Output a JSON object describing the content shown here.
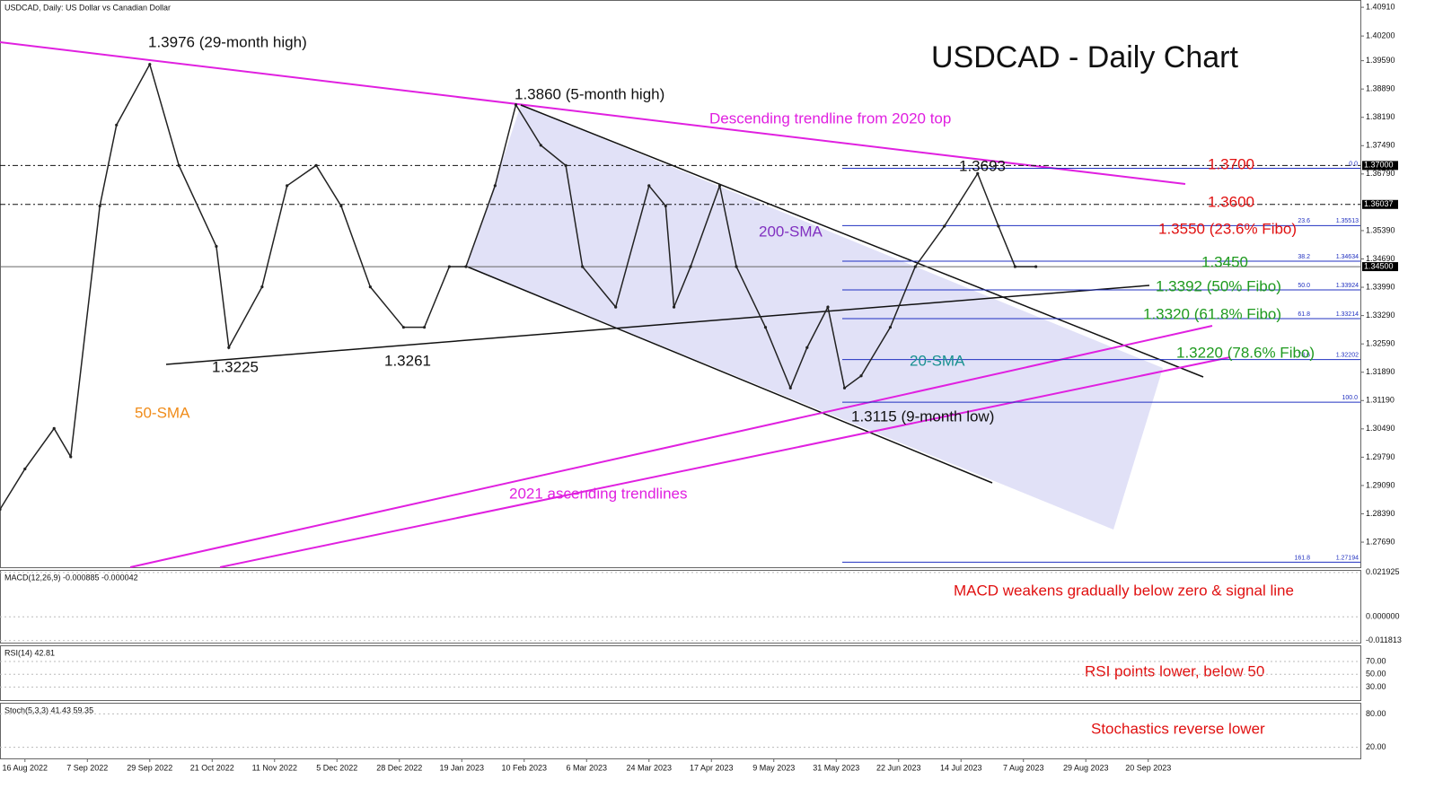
{
  "chart_data": {
    "type": "line",
    "symbol_label": "USDCAD, Daily:  US Dollar vs Canadian Dollar",
    "title": "USDCAD - Daily Chart",
    "color": "#222222",
    "x": [
      0,
      6,
      13,
      17,
      24,
      28,
      36,
      43,
      52,
      55,
      63,
      69,
      76,
      82,
      89,
      97,
      102,
      108,
      112,
      119,
      124,
      130,
      136,
      140,
      148,
      156,
      160,
      162,
      166,
      173,
      177,
      184,
      190,
      194,
      199,
      203,
      207,
      214,
      220,
      227,
      235,
      240,
      244,
      249
    ],
    "values": [
      1.285,
      1.295,
      1.305,
      1.298,
      1.36,
      1.38,
      1.395,
      1.37,
      1.35,
      1.325,
      1.34,
      1.365,
      1.37,
      1.36,
      1.34,
      1.33,
      1.33,
      1.345,
      1.345,
      1.365,
      1.385,
      1.375,
      1.37,
      1.345,
      1.335,
      1.365,
      1.36,
      1.335,
      1.345,
      1.365,
      1.345,
      1.33,
      1.315,
      1.325,
      1.335,
      1.315,
      1.318,
      1.33,
      1.345,
      1.355,
      1.368,
      1.355,
      1.345,
      1.345
    ],
    "xlim": [
      0,
      327
    ],
    "xticks": [
      {
        "value": 6,
        "label": "16 Aug 2022"
      },
      {
        "value": 21,
        "label": "7 Sep 2022"
      },
      {
        "value": 36,
        "label": "29 Sep 2022"
      },
      {
        "value": 51,
        "label": "21 Oct 2022"
      },
      {
        "value": 66,
        "label": "11 Nov 2022"
      },
      {
        "value": 81,
        "label": "5 Dec 2022"
      },
      {
        "value": 96,
        "label": "28 Dec 2022"
      },
      {
        "value": 111,
        "label": "19 Jan 2023"
      },
      {
        "value": 126,
        "label": "10 Feb 2023"
      },
      {
        "value": 141,
        "label": "6 Mar 2023"
      },
      {
        "value": 156,
        "label": "24 Mar 2023"
      },
      {
        "value": 171,
        "label": "17 Apr 2023"
      },
      {
        "value": 186,
        "label": "9 May 2023"
      },
      {
        "value": 201,
        "label": "31 May 2023"
      },
      {
        "value": 216,
        "label": "22 Jun 2023"
      },
      {
        "value": 231,
        "label": "14 Jul 2023"
      },
      {
        "value": 246,
        "label": "7 Aug 2023"
      },
      {
        "value": 261,
        "label": "29 Aug 2023"
      },
      {
        "value": 276,
        "label": "20 Sep 2023"
      }
    ],
    "ylim": [
      1.2707,
      1.4109
    ],
    "yticks": [
      {
        "value": 1.4091,
        "label": "1.40910"
      },
      {
        "value": 1.402,
        "label": "1.40200"
      },
      {
        "value": 1.3959,
        "label": "1.39590"
      },
      {
        "value": 1.3889,
        "label": "1.38890"
      },
      {
        "value": 1.3819,
        "label": "1.38190"
      },
      {
        "value": 1.3749,
        "label": "1.37490"
      },
      {
        "value": 1.3679,
        "label": "1.36790"
      },
      {
        "value": 1.3539,
        "label": "1.35390"
      },
      {
        "value": 1.3469,
        "label": "1.34690"
      },
      {
        "value": 1.3399,
        "label": "1.33990"
      },
      {
        "value": 1.3329,
        "label": "1.33290"
      },
      {
        "value": 1.3259,
        "label": "1.32590"
      },
      {
        "value": 1.3189,
        "label": "1.31890"
      },
      {
        "value": 1.3119,
        "label": "1.31190"
      },
      {
        "value": 1.3049,
        "label": "1.30490"
      },
      {
        "value": 1.2979,
        "label": "1.29790"
      },
      {
        "value": 1.2909,
        "label": "1.29090"
      },
      {
        "value": 1.2839,
        "label": "1.28390"
      },
      {
        "value": 1.2769,
        "label": "1.27690"
      }
    ],
    "price_markers": [
      {
        "value": 1.37,
        "label": "1.37000"
      },
      {
        "value": 1.36037,
        "label": "1.36037"
      },
      {
        "value": 1.345,
        "label": "1.34500"
      }
    ],
    "fibo": {
      "levels": [
        "0.0",
        "23.6",
        "38.2",
        "50.0",
        "61.8",
        "78.6",
        "100.0",
        "161.8"
      ],
      "values": [
        1.3693,
        1.35513,
        1.34634,
        1.33924,
        1.33214,
        1.32202,
        1.3115,
        1.27194
      ],
      "value_labels": [
        null,
        "1.35513",
        "1.34634",
        "1.33924",
        "1.33214",
        "1.32202",
        null,
        "1.27194"
      ]
    },
    "annotations": [
      {
        "text": "1.3976 (29-month high)",
        "color": "#111111"
      },
      {
        "text": "1.3860 (5-month high)",
        "color": "#111111"
      },
      {
        "text": "Descending trendline from 2020 top",
        "color": "#e020e0"
      },
      {
        "text": "1.3693",
        "color": "#111111"
      },
      {
        "text": "1.3700",
        "color": "#e01010"
      },
      {
        "text": "1.3600",
        "color": "#e01010"
      },
      {
        "text": "1.3550 (23.6% Fibo)",
        "color": "#e01010"
      },
      {
        "text": "200-SMA",
        "color": "#8030c0"
      },
      {
        "text": "1.3450",
        "color": "#1f9a1f"
      },
      {
        "text": "1.3392 (50% Fibo)",
        "color": "#1f9a1f"
      },
      {
        "text": "1.3320 (61.8% Fibo)",
        "color": "#1f9a1f"
      },
      {
        "text": "1.3220 (78.6% Fibo)",
        "color": "#1f9a1f"
      },
      {
        "text": "20-SMA",
        "color": "#189090"
      },
      {
        "text": "1.3225",
        "color": "#111111"
      },
      {
        "text": "1.3261",
        "color": "#111111"
      },
      {
        "text": "50-SMA",
        "color": "#f08c1a"
      },
      {
        "text": "1.3115 (9-month low)",
        "color": "#111111"
      },
      {
        "text": "2021 ascending trendlines",
        "color": "#e020e0"
      }
    ],
    "indicators": [
      {
        "label": "MACD(12,26,9) -0.000885 -0.000042",
        "note": "MACD weakens gradually below zero & signal line",
        "ylim": [
          -0.0128,
          0.0232
        ],
        "yticks": [
          {
            "value": 0.021925,
            "label": "0.021925"
          },
          {
            "value": 0,
            "label": "0.000000"
          },
          {
            "value": -0.011813,
            "label": "-0.011813"
          }
        ]
      },
      {
        "label": "RSI(14) 42.81",
        "note": "RSI points lower, below 50",
        "ylim": [
          10,
          95
        ],
        "yticks": [
          {
            "value": 70,
            "label": "70.00"
          },
          {
            "value": 50,
            "label": "50.00"
          },
          {
            "value": 30,
            "label": "30.00"
          }
        ]
      },
      {
        "label": "Stoch(5,3,3) 41.43 59.35",
        "note": "Stochastics reverse lower",
        "ylim": [
          0,
          100
        ],
        "yticks": [
          {
            "value": 80,
            "label": "80.00"
          },
          {
            "value": 20,
            "label": "20.00"
          }
        ]
      }
    ]
  }
}
